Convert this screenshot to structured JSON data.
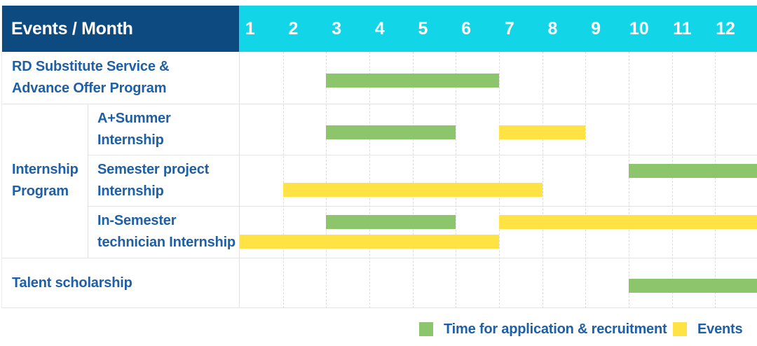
{
  "header": {
    "events_month_label": "Events / Month",
    "months": [
      "1",
      "2",
      "3",
      "4",
      "5",
      "6",
      "7",
      "8",
      "9",
      "10",
      "11",
      "12"
    ]
  },
  "rows": [
    {
      "label": "RD Substitute Service &\nAdvance Offer Program"
    },
    {
      "group": "Internship\nProgram",
      "label": "A+Summer\nInternship"
    },
    {
      "label": "Semester project\nInternship"
    },
    {
      "label": "In-Semester\ntechnician Internship"
    },
    {
      "label": "Talent scholarship"
    }
  ],
  "colors": {
    "header_bg": "#0c4a80",
    "month_header_bg": "#12d5e8",
    "label_text": "#1f5fa6",
    "application_green": "#8cc56c",
    "event_yellow": "#ffe344",
    "grid_line": "#e4e4e4"
  },
  "chart_data": {
    "type": "gantt",
    "title": "Events / Month",
    "x_axis": {
      "label": "Month",
      "ticks": [
        1,
        2,
        3,
        4,
        5,
        6,
        7,
        8,
        9,
        10,
        11,
        12
      ],
      "range": [
        1,
        12
      ]
    },
    "grid": "on",
    "legend_position": "bottom-right",
    "tasks": [
      {
        "group": null,
        "name": "RD Substitute Service & Advance Offer Program",
        "bars": [
          {
            "type": "application",
            "start": 3,
            "end": 6,
            "lane": "center"
          }
        ]
      },
      {
        "group": "Internship Program",
        "name": "A+Summer Internship",
        "bars": [
          {
            "type": "application",
            "start": 3,
            "end": 5,
            "lane": "center"
          },
          {
            "type": "event",
            "start": 7,
            "end": 8,
            "lane": "center"
          }
        ]
      },
      {
        "group": "Internship Program",
        "name": "Semester project Internship",
        "bars": [
          {
            "type": "application",
            "start": 10,
            "end": 12,
            "lane": "upper"
          },
          {
            "type": "event",
            "start": 2,
            "end": 7,
            "lane": "lower"
          }
        ]
      },
      {
        "group": "Internship Program",
        "name": "In-Semester technician Internship",
        "bars": [
          {
            "type": "application",
            "start": 3,
            "end": 5,
            "lane": "upper"
          },
          {
            "type": "event",
            "start": 7,
            "end": 12,
            "lane": "upper"
          },
          {
            "type": "event",
            "start": 1,
            "end": 6,
            "lane": "lower"
          }
        ]
      },
      {
        "group": null,
        "name": "Talent scholarship",
        "bars": [
          {
            "type": "application",
            "start": 10,
            "end": 12,
            "lane": "center"
          }
        ]
      }
    ],
    "legend": [
      {
        "type": "application",
        "label": "Time for application & recruitment",
        "color": "#8cc56c"
      },
      {
        "type": "event",
        "label": "Events",
        "color": "#ffe344"
      }
    ]
  }
}
